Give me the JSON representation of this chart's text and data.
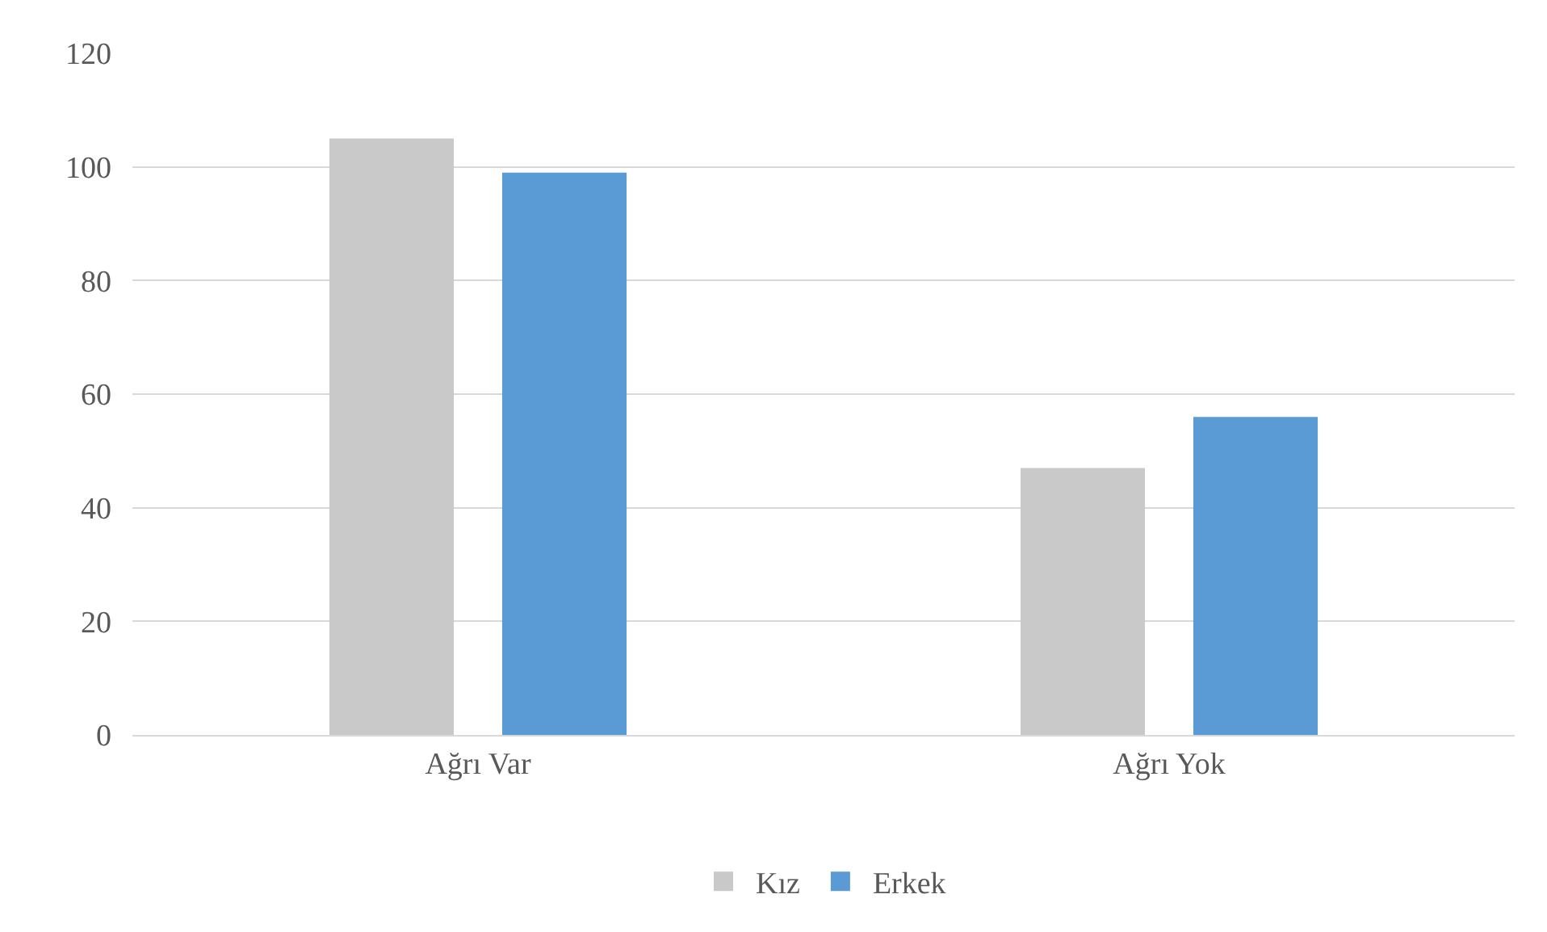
{
  "chart_data": {
    "type": "bar",
    "categories": [
      "Ağrı Var",
      "Ağrı Yok"
    ],
    "series": [
      {
        "name": "Kız",
        "color": "#c9c9c9",
        "values": [
          105,
          47
        ]
      },
      {
        "name": "Erkek",
        "color": "#5b9bd5",
        "values": [
          99,
          56
        ]
      }
    ],
    "ylim": [
      0,
      120
    ],
    "yticks": [
      0,
      20,
      40,
      60,
      80,
      100,
      120
    ],
    "grid": "y",
    "legend": "bottom"
  }
}
